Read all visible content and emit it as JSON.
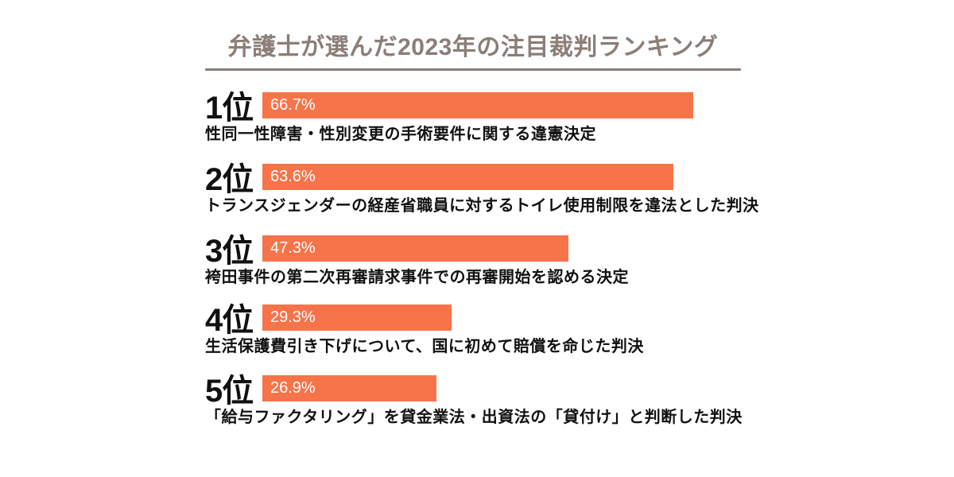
{
  "page": {
    "background_color": "#ffffff",
    "accent_color": "#f7744b",
    "title_color": "#8b7e77",
    "text_color": "#111111"
  },
  "chart_data": {
    "type": "bar",
    "orientation": "horizontal",
    "title": "弁護士が選んだ2023年の注目裁判ランキング",
    "unit": "%",
    "xlim": [
      0,
      100
    ],
    "grid": false,
    "legend": false,
    "bar_color": "#f7744b",
    "value_label_color": "#ffffff",
    "categories": [
      "1位",
      "2位",
      "3位",
      "4位",
      "5位"
    ],
    "values": [
      66.7,
      63.6,
      47.3,
      29.3,
      26.9
    ],
    "items": [
      {
        "rank_label": "1位",
        "value": 66.7,
        "value_label": "66.7%",
        "case_label": "性同一性障害・性別変更の手術要件に関する違憲決定"
      },
      {
        "rank_label": "2位",
        "value": 63.6,
        "value_label": "63.6%",
        "case_label": "トランスジェンダーの経産省職員に対するトイレ使用制限を違法とした判決"
      },
      {
        "rank_label": "3位",
        "value": 47.3,
        "value_label": "47.3%",
        "case_label": "袴田事件の第二次再審請求事件での再審開始を認める決定"
      },
      {
        "rank_label": "4位",
        "value": 29.3,
        "value_label": "29.3%",
        "case_label": "生活保護費引き下げについて、国に初めて賠償を命じた判決"
      },
      {
        "rank_label": "5位",
        "value": 26.9,
        "value_label": "26.9%",
        "case_label": "「給与ファクタリング」を貸金業法・出資法の「貸付け」と判断した判決"
      }
    ]
  }
}
